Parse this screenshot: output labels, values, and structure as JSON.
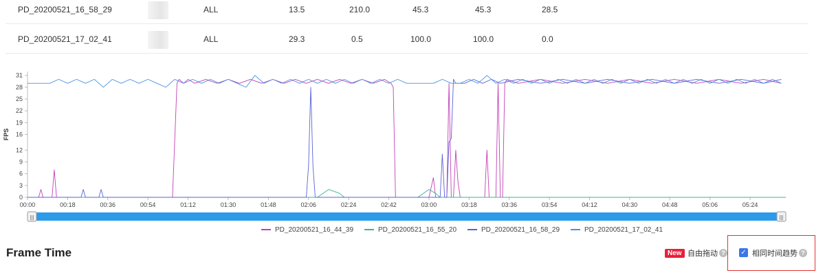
{
  "table": {
    "rows": [
      {
        "name": "PD_20200521_16_58_29",
        "scope": "ALL",
        "v1": "13.5",
        "v2": "210.0",
        "v3": "45.3",
        "v4": "45.3",
        "v5": "28.5"
      },
      {
        "name": "PD_20200521_17_02_41",
        "scope": "ALL",
        "v1": "29.3",
        "v2": "0.5",
        "v3": "100.0",
        "v4": "100.0",
        "v5": "0.0"
      }
    ]
  },
  "chart_data": {
    "type": "line",
    "ylabel": "FPS",
    "ylim": [
      0,
      32
    ],
    "yticks": [
      "0",
      "3",
      "6",
      "9",
      "12",
      "16",
      "19",
      "22",
      "25",
      "28",
      "31"
    ],
    "xticks": [
      "00:00",
      "00:18",
      "00:36",
      "00:54",
      "01:12",
      "01:30",
      "01:48",
      "02:06",
      "02:24",
      "02:42",
      "03:00",
      "03:18",
      "03:36",
      "03:54",
      "04:12",
      "04:30",
      "04:48",
      "05:06",
      "05:24"
    ],
    "xlim_seconds": [
      0,
      340
    ],
    "series": [
      {
        "name": "PD_20200521_16_44_39",
        "color": "#c23fb7",
        "points": [
          [
            0,
            0
          ],
          [
            5,
            0
          ],
          [
            6,
            2
          ],
          [
            7,
            0
          ],
          [
            11,
            0
          ],
          [
            12,
            7
          ],
          [
            13,
            0
          ],
          [
            65,
            0
          ],
          [
            67,
            29
          ],
          [
            68,
            30
          ],
          [
            70,
            29
          ],
          [
            72,
            30
          ],
          [
            75,
            29
          ],
          [
            80,
            30
          ],
          [
            85,
            29
          ],
          [
            90,
            30
          ],
          [
            95,
            29
          ],
          [
            100,
            30
          ],
          [
            105,
            29
          ],
          [
            110,
            30
          ],
          [
            115,
            29
          ],
          [
            120,
            30
          ],
          [
            125,
            29
          ],
          [
            130,
            30
          ],
          [
            135,
            29
          ],
          [
            140,
            30
          ],
          [
            145,
            29
          ],
          [
            150,
            30
          ],
          [
            155,
            29
          ],
          [
            160,
            30
          ],
          [
            163,
            29
          ],
          [
            164,
            28
          ],
          [
            165,
            0
          ],
          [
            175,
            0
          ],
          [
            176,
            0
          ],
          [
            180,
            0
          ],
          [
            182,
            5
          ],
          [
            183,
            0
          ],
          [
            188,
            0
          ],
          [
            189,
            29
          ],
          [
            190,
            0
          ],
          [
            191,
            0
          ],
          [
            192,
            12
          ],
          [
            193,
            4
          ],
          [
            194,
            0
          ],
          [
            205,
            0
          ],
          [
            206,
            12
          ],
          [
            207,
            0
          ],
          [
            210,
            0
          ],
          [
            211,
            29
          ],
          [
            212,
            0
          ],
          [
            213,
            0
          ],
          [
            214,
            29
          ],
          [
            215,
            30
          ],
          [
            220,
            29
          ],
          [
            230,
            30
          ],
          [
            240,
            29
          ],
          [
            250,
            30
          ],
          [
            260,
            29
          ],
          [
            270,
            30
          ],
          [
            280,
            29
          ],
          [
            290,
            30
          ],
          [
            300,
            29
          ],
          [
            310,
            30
          ],
          [
            320,
            29
          ],
          [
            330,
            30
          ],
          [
            338,
            29
          ]
        ]
      },
      {
        "name": "PD_20200521_16_55_20",
        "color": "#3bb39a",
        "points": [
          [
            0,
            0
          ],
          [
            130,
            0
          ],
          [
            135,
            2
          ],
          [
            140,
            1
          ],
          [
            142,
            0
          ],
          [
            175,
            0
          ],
          [
            180,
            2
          ],
          [
            183,
            1
          ],
          [
            185,
            0
          ],
          [
            340,
            0
          ]
        ]
      },
      {
        "name": "PD_20200521_16_58_29",
        "color": "#5961d6",
        "points": [
          [
            0,
            0
          ],
          [
            24,
            0
          ],
          [
            25,
            2
          ],
          [
            26,
            0
          ],
          [
            32,
            0
          ],
          [
            33,
            2
          ],
          [
            34,
            0
          ],
          [
            125,
            0
          ],
          [
            126,
            8
          ],
          [
            127,
            28
          ],
          [
            128,
            8
          ],
          [
            129,
            0
          ],
          [
            180,
            0
          ],
          [
            185,
            0
          ],
          [
            186,
            11
          ],
          [
            187,
            0
          ],
          [
            188,
            0
          ],
          [
            189,
            14
          ],
          [
            190,
            15
          ],
          [
            191,
            30
          ],
          [
            192,
            29
          ],
          [
            196,
            29
          ],
          [
            200,
            30
          ],
          [
            204,
            29
          ],
          [
            208,
            30
          ],
          [
            212,
            29
          ],
          [
            220,
            30
          ],
          [
            230,
            29
          ],
          [
            240,
            30
          ],
          [
            250,
            29
          ],
          [
            260,
            30
          ],
          [
            270,
            29
          ],
          [
            280,
            30
          ],
          [
            290,
            29
          ],
          [
            300,
            30
          ],
          [
            310,
            29
          ],
          [
            320,
            30
          ],
          [
            330,
            29
          ],
          [
            338,
            30
          ]
        ]
      },
      {
        "name": "PD_20200521_17_02_41",
        "color": "#4a90e2",
        "points": [
          [
            0,
            29
          ],
          [
            5,
            29
          ],
          [
            10,
            29
          ],
          [
            14,
            30
          ],
          [
            18,
            29
          ],
          [
            22,
            30
          ],
          [
            26,
            29
          ],
          [
            30,
            30
          ],
          [
            34,
            28
          ],
          [
            38,
            30
          ],
          [
            42,
            29
          ],
          [
            46,
            30
          ],
          [
            50,
            29
          ],
          [
            54,
            30
          ],
          [
            58,
            29
          ],
          [
            62,
            28
          ],
          [
            66,
            30
          ],
          [
            70,
            29
          ],
          [
            74,
            30
          ],
          [
            78,
            29
          ],
          [
            82,
            30
          ],
          [
            86,
            29
          ],
          [
            90,
            30
          ],
          [
            94,
            29
          ],
          [
            98,
            28
          ],
          [
            102,
            31
          ],
          [
            106,
            29
          ],
          [
            110,
            30
          ],
          [
            114,
            29
          ],
          [
            118,
            30
          ],
          [
            122,
            29
          ],
          [
            126,
            30
          ],
          [
            130,
            29
          ],
          [
            134,
            30
          ],
          [
            138,
            29
          ],
          [
            142,
            30
          ],
          [
            146,
            29
          ],
          [
            150,
            30
          ],
          [
            154,
            29
          ],
          [
            158,
            30
          ],
          [
            162,
            29
          ],
          [
            166,
            30
          ],
          [
            170,
            29
          ],
          [
            174,
            29
          ],
          [
            178,
            29
          ],
          [
            182,
            29
          ],
          [
            186,
            30
          ],
          [
            190,
            29
          ],
          [
            194,
            29
          ],
          [
            198,
            30
          ],
          [
            202,
            29
          ],
          [
            206,
            31
          ],
          [
            210,
            29
          ],
          [
            214,
            30
          ],
          [
            218,
            29
          ],
          [
            222,
            30
          ],
          [
            226,
            29
          ],
          [
            230,
            30
          ],
          [
            234,
            29
          ],
          [
            238,
            30
          ],
          [
            242,
            29
          ],
          [
            246,
            30
          ],
          [
            250,
            29
          ],
          [
            254,
            30
          ],
          [
            258,
            29
          ],
          [
            262,
            30
          ],
          [
            266,
            29
          ],
          [
            270,
            30
          ],
          [
            274,
            29
          ],
          [
            278,
            30
          ],
          [
            282,
            29
          ],
          [
            286,
            30
          ],
          [
            290,
            29
          ],
          [
            294,
            30
          ],
          [
            298,
            29
          ],
          [
            302,
            30
          ],
          [
            306,
            29
          ],
          [
            310,
            30
          ],
          [
            314,
            29
          ],
          [
            318,
            30
          ],
          [
            322,
            29
          ],
          [
            326,
            30
          ],
          [
            330,
            29
          ],
          [
            334,
            30
          ],
          [
            338,
            29
          ]
        ]
      }
    ],
    "legend_position": "bottom",
    "grid": false
  },
  "slider": {
    "left_handle": "|||",
    "right_handle": "|||"
  },
  "section": {
    "title": "Frame Time"
  },
  "options": {
    "new_badge": "New",
    "free_drag_label": "自由拖动",
    "same_time_label": "相同时间趋势",
    "same_time_checked": true,
    "help_glyph": "?",
    "check_glyph": "✓"
  }
}
